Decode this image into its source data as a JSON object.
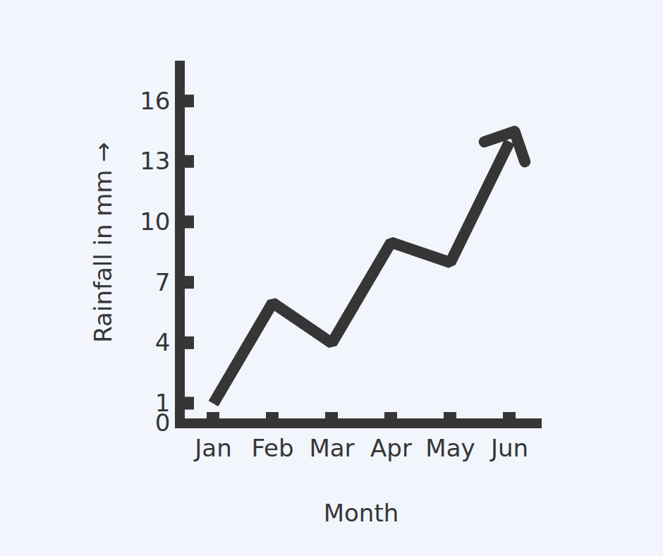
{
  "chart_data": {
    "type": "line",
    "x_label": "Month",
    "y_label": "Rainfall in mm",
    "categories": [
      "Jan",
      "Feb",
      "Mar",
      "Apr",
      "May",
      "Jun"
    ],
    "values": [
      1,
      6,
      4,
      9,
      8,
      14
    ],
    "color": "#363636",
    "marker": "arrow",
    "ylim": [
      0,
      18
    ],
    "yticks": [
      0,
      1,
      4,
      7,
      10,
      13,
      16
    ]
  }
}
